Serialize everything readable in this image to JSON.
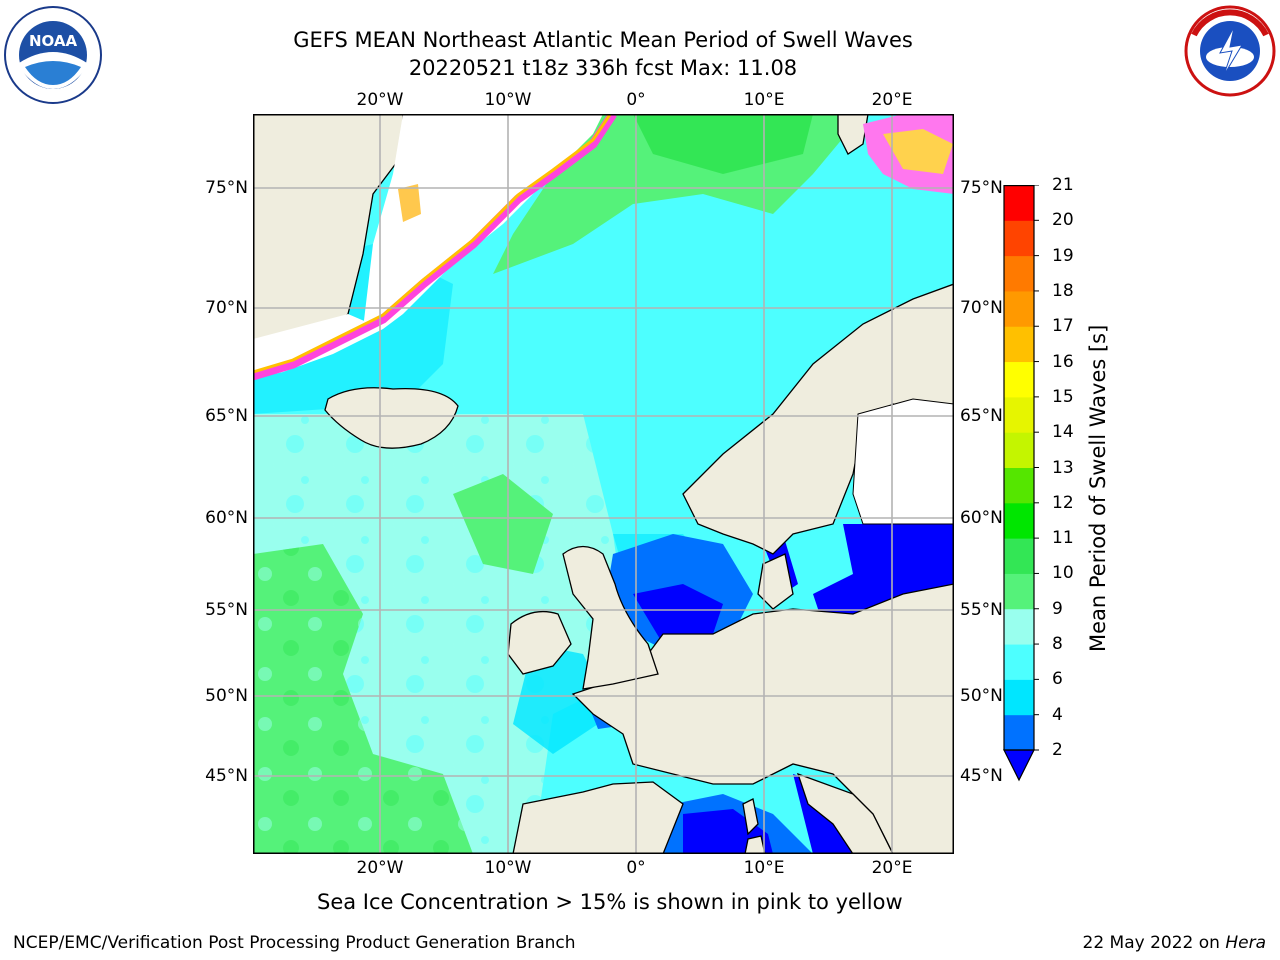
{
  "title": {
    "line1": "GEFS MEAN Northeast Atlantic Mean Period of Swell Waves",
    "line2": "20220521 t18z 336h fcst   Max: 11.08"
  },
  "logos": {
    "noaa": {
      "text": "NOAA",
      "ring_top": "NATIONAL OCEANIC AND ATMOSPHERIC ADMINISTRATION",
      "ring_bottom": "U.S. DEPARTMENT OF COMMERCE"
    },
    "nws": {
      "ring_top": "NATIONAL WEATHER SERVICE"
    }
  },
  "map": {
    "lon_ticks": [
      {
        "label": "20°W",
        "lon": -20
      },
      {
        "label": "10°W",
        "lon": -10
      },
      {
        "label": "0°",
        "lon": 0
      },
      {
        "label": "10°E",
        "lon": 10
      },
      {
        "label": "20°E",
        "lon": 20
      }
    ],
    "lat_ticks": [
      {
        "label": "75°N",
        "lat": 75
      },
      {
        "label": "70°N",
        "lat": 70
      },
      {
        "label": "65°N",
        "lat": 65
      },
      {
        "label": "60°N",
        "lat": 60
      },
      {
        "label": "55°N",
        "lat": 55
      },
      {
        "label": "50°N",
        "lat": 50
      },
      {
        "label": "45°N",
        "lat": 45
      }
    ],
    "colors": {
      "land": "#efedde",
      "white_area": "#ffffff",
      "coast": "#000000",
      "grid": "#b3b3b3"
    }
  },
  "colorbar": {
    "label": "Mean Period of Swell Waves [s]",
    "extend": "min",
    "ticks": [
      "2",
      "4",
      "6",
      "8",
      "9",
      "10",
      "11",
      "12",
      "13",
      "14",
      "15",
      "16",
      "17",
      "18",
      "19",
      "20",
      "21"
    ],
    "bins": [
      {
        "from": 2,
        "to": 4,
        "color": "#0072ff"
      },
      {
        "from": 4,
        "to": 6,
        "color": "#00e6ff"
      },
      {
        "from": 6,
        "to": 8,
        "color": "#4dffff"
      },
      {
        "from": 8,
        "to": 9,
        "color": "#99ffee"
      },
      {
        "from": 9,
        "to": 10,
        "color": "#55f27a"
      },
      {
        "from": 10,
        "to": 11,
        "color": "#33e655"
      },
      {
        "from": 11,
        "to": 12,
        "color": "#00e600"
      },
      {
        "from": 12,
        "to": 13,
        "color": "#55e600"
      },
      {
        "from": 13,
        "to": 14,
        "color": "#c4f500"
      },
      {
        "from": 14,
        "to": 15,
        "color": "#e6f500"
      },
      {
        "from": 15,
        "to": 16,
        "color": "#ffff00"
      },
      {
        "from": 16,
        "to": 17,
        "color": "#ffc000"
      },
      {
        "from": 17,
        "to": 18,
        "color": "#ff9900"
      },
      {
        "from": 18,
        "to": 19,
        "color": "#ff7a00"
      },
      {
        "from": 19,
        "to": 20,
        "color": "#ff4400"
      },
      {
        "from": 20,
        "to": 21,
        "color": "#ff0000"
      }
    ],
    "under_color": "#0000ff"
  },
  "caption": "Sea Ice Concentration > 15% is shown in pink to yellow",
  "footer": {
    "left": "NCEP/EMC/Verification Post Processing Product Generation Branch",
    "right_prefix": "22 May 2022 on ",
    "right_machine": "Hera"
  }
}
